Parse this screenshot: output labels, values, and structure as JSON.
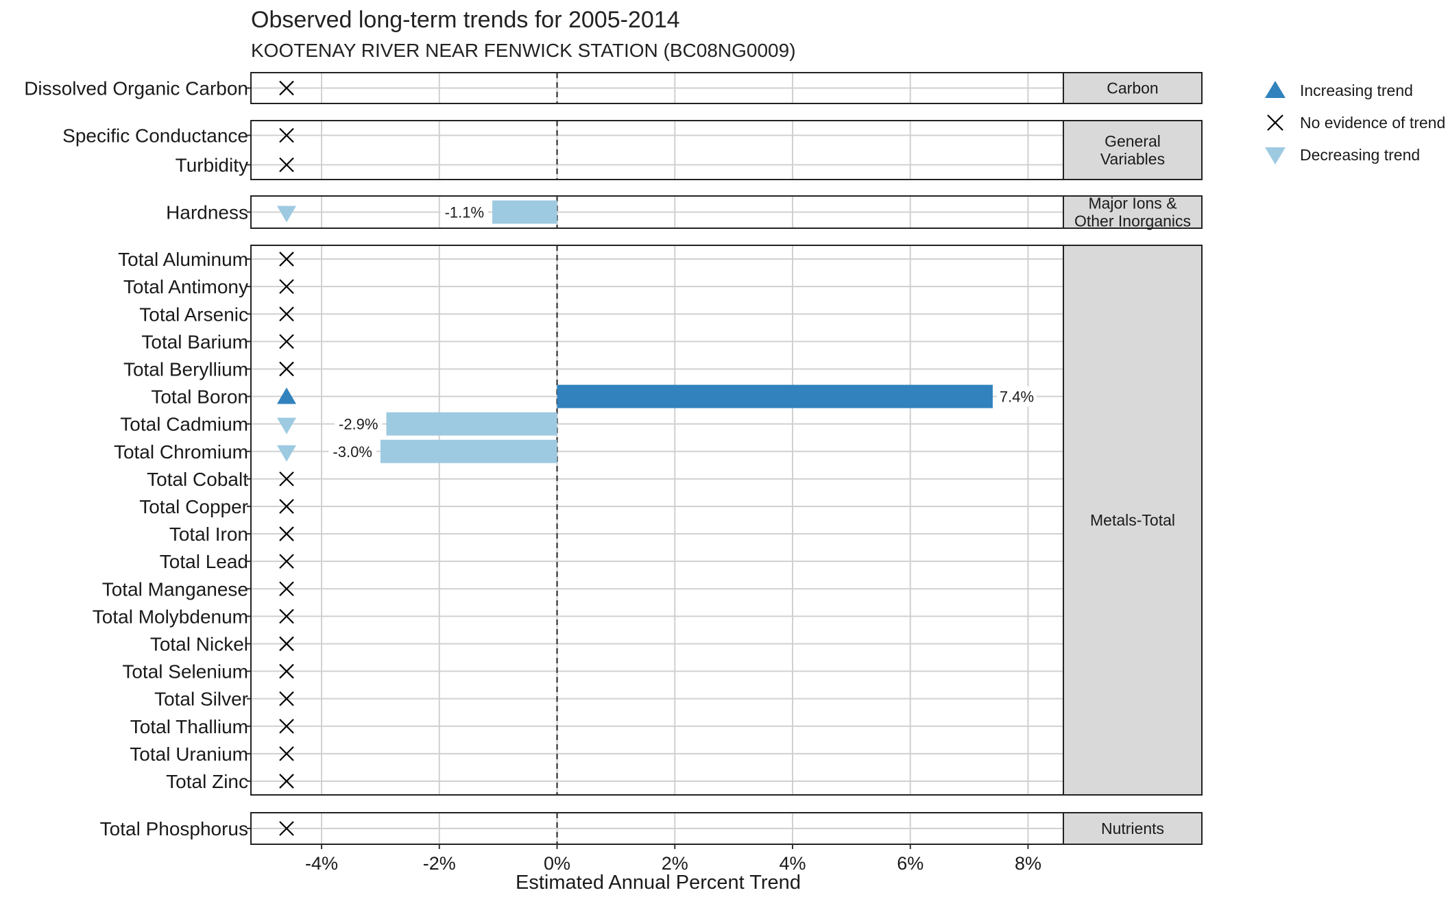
{
  "colors": {
    "increasing": "#3182bd",
    "decreasing": "#9ecae1",
    "no_trend": "#000000",
    "strip_fill": "#d9d9d9",
    "grid": "#d0d0d0"
  },
  "legend": {
    "position": "right",
    "items": [
      {
        "label": "Increasing trend",
        "shape": "triangle-up",
        "color": "#3182bd"
      },
      {
        "label": "No evidence of trend",
        "shape": "cross",
        "color": "#000000"
      },
      {
        "label": "Decreasing trend",
        "shape": "triangle-down",
        "color": "#9ecae1"
      }
    ]
  },
  "chart_data": {
    "type": "bar",
    "orientation": "horizontal",
    "title": "Observed long-term trends for 2005-2014",
    "subtitle": "KOOTENAY RIVER NEAR FENWICK STATION (BC08NG0009)",
    "xlabel": "Estimated Annual Percent Trend",
    "ylabel": "",
    "xlim": [
      -5.2,
      8.6
    ],
    "xticks": [
      -4,
      -2,
      0,
      2,
      4,
      6,
      8
    ],
    "xtick_labels": [
      "-4%",
      "-2%",
      "0%",
      "2%",
      "4%",
      "6%",
      "8%"
    ],
    "grid": true,
    "reference_line": 0,
    "panels": [
      {
        "name": "Carbon",
        "variables": [
          {
            "name": "Dissolved Organic Carbon",
            "trend": "none"
          }
        ]
      },
      {
        "name": "General Variables",
        "variables": [
          {
            "name": "Specific Conductance",
            "trend": "none"
          },
          {
            "name": "Turbidity",
            "trend": "none"
          }
        ]
      },
      {
        "name": "Major Ions & Other Inorganics",
        "variables": [
          {
            "name": "Hardness",
            "trend": "decreasing",
            "value": -1.1,
            "label": "-1.1%"
          }
        ]
      },
      {
        "name": "Metals-Total",
        "variables": [
          {
            "name": "Total Aluminum",
            "trend": "none"
          },
          {
            "name": "Total Antimony",
            "trend": "none"
          },
          {
            "name": "Total Arsenic",
            "trend": "none"
          },
          {
            "name": "Total Barium",
            "trend": "none"
          },
          {
            "name": "Total Beryllium",
            "trend": "none"
          },
          {
            "name": "Total Boron",
            "trend": "increasing",
            "value": 7.4,
            "label": "7.4%"
          },
          {
            "name": "Total Cadmium",
            "trend": "decreasing",
            "value": -2.9,
            "label": "-2.9%"
          },
          {
            "name": "Total Chromium",
            "trend": "decreasing",
            "value": -3.0,
            "label": "-3.0%"
          },
          {
            "name": "Total Cobalt",
            "trend": "none"
          },
          {
            "name": "Total Copper",
            "trend": "none"
          },
          {
            "name": "Total Iron",
            "trend": "none"
          },
          {
            "name": "Total Lead",
            "trend": "none"
          },
          {
            "name": "Total Manganese",
            "trend": "none"
          },
          {
            "name": "Total Molybdenum",
            "trend": "none"
          },
          {
            "name": "Total Nickel",
            "trend": "none"
          },
          {
            "name": "Total Selenium",
            "trend": "none"
          },
          {
            "name": "Total Silver",
            "trend": "none"
          },
          {
            "name": "Total Thallium",
            "trend": "none"
          },
          {
            "name": "Total Uranium",
            "trend": "none"
          },
          {
            "name": "Total Zinc",
            "trend": "none"
          }
        ]
      },
      {
        "name": "Nutrients",
        "variables": [
          {
            "name": "Total Phosphorus",
            "trend": "none"
          }
        ]
      }
    ]
  }
}
